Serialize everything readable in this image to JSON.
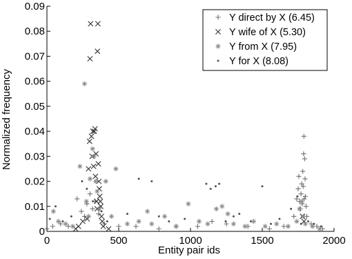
{
  "chart_data": {
    "type": "scatter",
    "xlabel": "Entity pair ids",
    "ylabel": "Normalized frequency",
    "xlim": [
      0,
      2000
    ],
    "ylim": [
      0,
      0.09
    ],
    "xticks": [
      "0",
      "500",
      "1000",
      "1500",
      "2000"
    ],
    "yticks": [
      "0",
      "0.01",
      "0.02",
      "0.03",
      "0.04",
      "0.05",
      "0.06",
      "0.07",
      "0.08",
      "0.09"
    ],
    "xtick_values": [
      0,
      500,
      1000,
      1500,
      2000
    ],
    "ytick_values": [
      0,
      0.01,
      0.02,
      0.03,
      0.04,
      0.05,
      0.06,
      0.07,
      0.08,
      0.09
    ],
    "legend_position": "top-right",
    "grid": false,
    "series": [
      {
        "name": "Y direct by X (6.45)",
        "marker": "plus",
        "color": "#707070",
        "points": [
          [
            0,
            0.001
          ],
          [
            40,
            0.002
          ],
          [
            95,
            0.003
          ],
          [
            150,
            0.002
          ],
          [
            210,
            0.013
          ],
          [
            240,
            0.008
          ],
          [
            262,
            0.006
          ],
          [
            278,
            0.011
          ],
          [
            300,
            0.015
          ],
          [
            318,
            0.009
          ],
          [
            335,
            0.012
          ],
          [
            360,
            0.007
          ],
          [
            400,
            0.003
          ],
          [
            500,
            0.002
          ],
          [
            620,
            0.002
          ],
          [
            780,
            0.001
          ],
          [
            900,
            0.002
          ],
          [
            1050,
            0.002
          ],
          [
            1150,
            0.004
          ],
          [
            1250,
            0.003
          ],
          [
            1400,
            0.002
          ],
          [
            1550,
            0.001
          ],
          [
            1650,
            0.002
          ],
          [
            1720,
            0.006
          ],
          [
            1740,
            0.013
          ],
          [
            1750,
            0.017
          ],
          [
            1755,
            0.022
          ],
          [
            1760,
            0.012
          ],
          [
            1765,
            0.009
          ],
          [
            1770,
            0.015
          ],
          [
            1775,
            0.019
          ],
          [
            1778,
            0.011
          ],
          [
            1782,
            0.024
          ],
          [
            1785,
            0.018
          ],
          [
            1788,
            0.031
          ],
          [
            1790,
            0.038
          ],
          [
            1792,
            0.013
          ],
          [
            1795,
            0.029
          ],
          [
            1798,
            0.021
          ],
          [
            1800,
            0.014
          ],
          [
            1805,
            0.01
          ],
          [
            1810,
            0.006
          ],
          [
            1840,
            0.003
          ],
          [
            1880,
            0.002
          ],
          [
            1920,
            0.001
          ]
        ]
      },
      {
        "name": "Y wife of X (5.30)",
        "marker": "x",
        "color": "#303030",
        "points": [
          [
            280,
            0.005
          ],
          [
            290,
            0.025
          ],
          [
            297,
            0.036
          ],
          [
            300,
            0.069
          ],
          [
            304,
            0.083
          ],
          [
            310,
            0.038
          ],
          [
            315,
            0.03
          ],
          [
            320,
            0.04
          ],
          [
            325,
            0.026
          ],
          [
            330,
            0.04
          ],
          [
            335,
            0.041
          ],
          [
            338,
            0.022
          ],
          [
            342,
            0.031
          ],
          [
            346,
            0.012
          ],
          [
            350,
            0.009
          ],
          [
            352,
            0.072
          ],
          [
            355,
            0.083
          ],
          [
            358,
            0.027
          ],
          [
            362,
            0.02
          ],
          [
            365,
            0.017
          ],
          [
            368,
            0.014
          ],
          [
            372,
            0.012
          ],
          [
            375,
            0.01
          ],
          [
            380,
            0.006
          ],
          [
            385,
            0.004
          ],
          [
            392,
            0.002
          ],
          [
            250,
            0.004
          ],
          [
            220,
            0.002
          ],
          [
            200,
            0.001
          ],
          [
            430,
            0.001
          ],
          [
            1780,
            0.006
          ],
          [
            1790,
            0.004
          ]
        ]
      },
      {
        "name": "Y from X (7.95)",
        "marker": "asterisk",
        "color": "#8a8a8a",
        "points": [
          [
            45,
            0.008
          ],
          [
            80,
            0.004
          ],
          [
            130,
            0.003
          ],
          [
            180,
            0.002
          ],
          [
            230,
            0.026
          ],
          [
            262,
            0.059
          ],
          [
            275,
            0.012
          ],
          [
            290,
            0.006
          ],
          [
            300,
            0.021
          ],
          [
            318,
            0.033
          ],
          [
            328,
            0.03
          ],
          [
            340,
            0.02
          ],
          [
            350,
            0.016
          ],
          [
            365,
            0.009
          ],
          [
            410,
            0.02
          ],
          [
            450,
            0.006
          ],
          [
            480,
            0.025
          ],
          [
            560,
            0.003
          ],
          [
            640,
            0.004
          ],
          [
            700,
            0.008
          ],
          [
            730,
            0.003
          ],
          [
            820,
            0.006
          ],
          [
            900,
            0.002
          ],
          [
            985,
            0.011
          ],
          [
            1060,
            0.004
          ],
          [
            1120,
            0.003
          ],
          [
            1180,
            0.009
          ],
          [
            1220,
            0.01
          ],
          [
            1260,
            0.007
          ],
          [
            1300,
            0.003
          ],
          [
            1380,
            0.002
          ],
          [
            1440,
            0.004
          ],
          [
            1520,
            0.002
          ],
          [
            1600,
            0.003
          ],
          [
            1680,
            0.002
          ],
          [
            1740,
            0.004
          ],
          [
            1760,
            0.009
          ],
          [
            1775,
            0.012
          ],
          [
            1785,
            0.006
          ],
          [
            1800,
            0.003
          ],
          [
            1850,
            0.002
          ],
          [
            1900,
            0.001
          ]
        ]
      },
      {
        "name": "Y for X (8.08)",
        "marker": "dot",
        "color": "#505050",
        "points": [
          [
            20,
            0.005
          ],
          [
            60,
            0.01
          ],
          [
            110,
            0.004
          ],
          [
            170,
            0.006
          ],
          [
            245,
            0.02
          ],
          [
            278,
            0.017
          ],
          [
            320,
            0.012
          ],
          [
            380,
            0.008
          ],
          [
            420,
            0.004
          ],
          [
            560,
            0.007
          ],
          [
            640,
            0.021
          ],
          [
            730,
            0.02
          ],
          [
            780,
            0.006
          ],
          [
            850,
            0.004
          ],
          [
            960,
            0.005
          ],
          [
            1110,
            0.019
          ],
          [
            1140,
            0.017
          ],
          [
            1175,
            0.018
          ],
          [
            1200,
            0.019
          ],
          [
            1245,
            0.004
          ],
          [
            1300,
            0.006
          ],
          [
            1340,
            0.007
          ],
          [
            1420,
            0.004
          ],
          [
            1500,
            0.018
          ],
          [
            1560,
            0.003
          ],
          [
            1620,
            0.005
          ],
          [
            1700,
            0.009
          ],
          [
            1745,
            0.014
          ],
          [
            1770,
            0.003
          ],
          [
            1820,
            0.004
          ],
          [
            1860,
            0.003
          ],
          [
            1910,
            0.002
          ]
        ]
      }
    ]
  }
}
